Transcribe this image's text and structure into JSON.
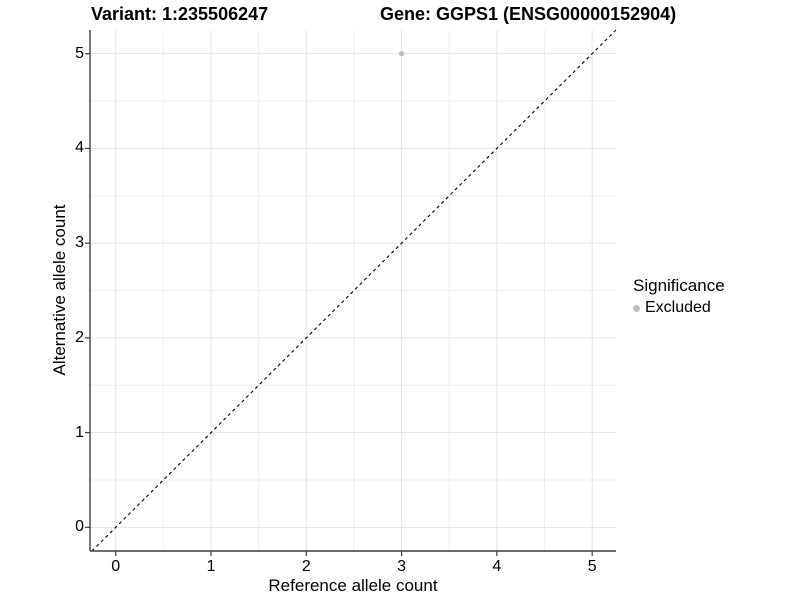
{
  "header": {
    "title_left": "Variant: 1:235506247",
    "title_right": "Gene: GGPS1 (ENSG00000152904)"
  },
  "axes": {
    "x_label": "Reference allele count",
    "y_label": "Alternative allele count"
  },
  "legend": {
    "title": "Significance",
    "items": [
      {
        "label": "Excluded",
        "color": "#bebebe"
      }
    ]
  },
  "chart_data": {
    "type": "scatter",
    "title": "Variant: 1:235506247 / Gene: GGPS1 (ENSG00000152904)",
    "xlabel": "Reference allele count",
    "ylabel": "Alternative allele count",
    "xlim": [
      -0.27,
      5.25
    ],
    "ylim": [
      -0.25,
      5.25
    ],
    "x_ticks": [
      0,
      1,
      2,
      3,
      4,
      5
    ],
    "y_ticks": [
      0,
      1,
      2,
      3,
      4,
      5
    ],
    "x_minor_ticks": [
      0.5,
      1.5,
      2.5,
      3.5,
      4.5
    ],
    "y_minor_ticks": [
      0.5,
      1.5,
      2.5,
      3.5,
      4.5
    ],
    "grid": "major+minor",
    "legend_position": "right",
    "series": [
      {
        "name": "Excluded",
        "color": "#bebebe",
        "points": [
          {
            "x": 3,
            "y": 5
          }
        ]
      }
    ],
    "reference_line": {
      "type": "identity y=x",
      "style": "dashed",
      "color": "#000000"
    }
  },
  "colors": {
    "background": "#ffffff",
    "grid_major": "#e4e4e4",
    "grid_minor": "#eeeeee",
    "axis_line": "#3c3c3c",
    "tick_mark": "#3c3c3c",
    "text": "#000000",
    "excluded_point": "#bebebe"
  }
}
